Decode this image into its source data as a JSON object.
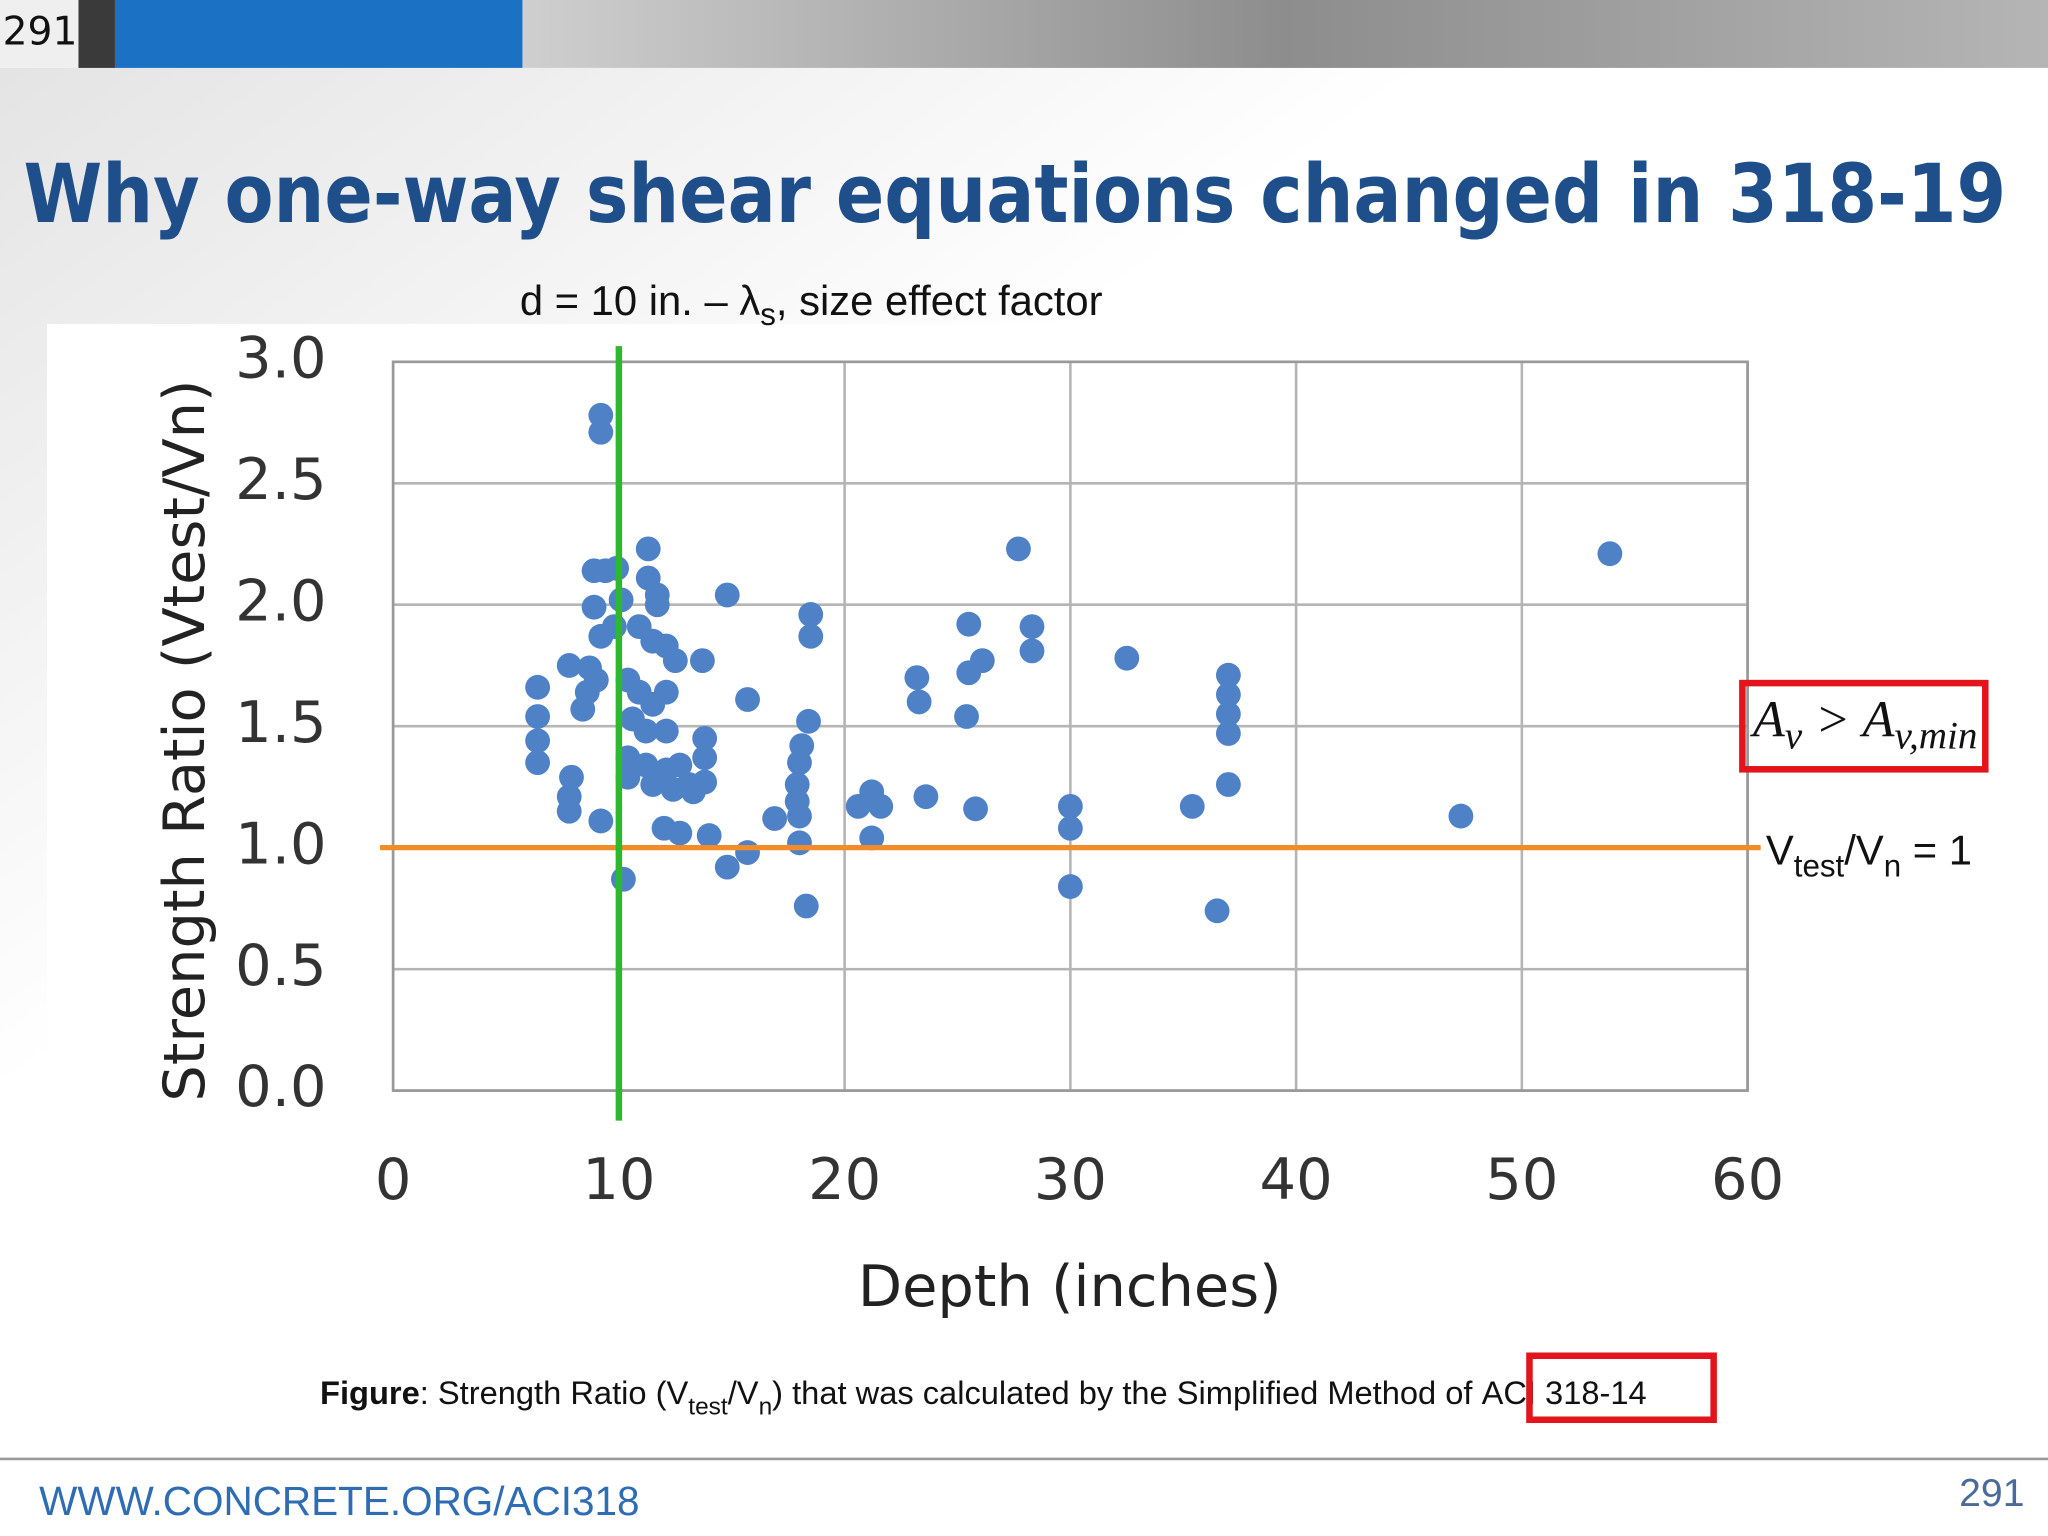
{
  "page_number": "291",
  "title": "Why one-way shear equations changed in 318-19",
  "caption": {
    "parts": [
      {
        "text": "Figure",
        "bold": true
      },
      {
        "text": ": Strength Ratio (V"
      },
      {
        "text": "test",
        "sub": true
      },
      {
        "text": "/V"
      },
      {
        "text": "n",
        "sub": true
      },
      {
        "text": ") that was calculated by the Simplified Method of "
      },
      {
        "text": "ACI 318-14"
      }
    ]
  },
  "footer": "WWW.CONCRETE.ORG/ACI318",
  "chart_data": {
    "type": "scatter",
    "x_label": "Depth (inches)",
    "y_label": "Strength Ratio (Vtest/Vn)",
    "color": "#4f81c7",
    "xlim": [
      0,
      60
    ],
    "xticks": [
      0,
      10,
      20,
      30,
      40,
      50,
      60
    ],
    "ylim": [
      0,
      3
    ],
    "yticks": [
      {
        "value": 0,
        "label": "0.0"
      },
      0.5,
      {
        "value": 1,
        "label": "1.0"
      },
      1.5,
      {
        "value": 2,
        "label": "2.0"
      },
      2.5,
      {
        "value": 3,
        "label": "3.0"
      }
    ],
    "grid": true,
    "vline": {
      "value": 10,
      "color": "#2db82d"
    },
    "hline": {
      "value": 1,
      "color": "#f28c28"
    },
    "annotations": [
      {
        "parts": [
          {
            "text": "d = 10 in. – λ"
          },
          {
            "text": "s",
            "sub": true
          },
          {
            "text": ", size effect factor"
          }
        ]
      },
      {
        "parts": [
          {
            "text": "A"
          },
          {
            "text": "v",
            "sub": true
          },
          {
            "text": " > A"
          },
          {
            "text": "v,min",
            "sub": true
          }
        ]
      },
      {
        "parts": [
          {
            "text": "V"
          },
          {
            "text": "test",
            "sub": true
          },
          {
            "text": "/V"
          },
          {
            "text": "n",
            "sub": true
          },
          {
            "text": " = 1"
          }
        ]
      }
    ],
    "x": [
      9.2,
      9.2,
      8.9,
      9.4,
      9.9,
      11.3,
      14.8,
      27.7,
      53.9,
      8.9,
      10.1,
      11.3,
      11.7,
      11.7,
      18.5,
      18.5,
      25.5,
      28.3,
      28.3,
      32.5,
      9.2,
      9.8,
      10.9,
      11.5,
      12.1,
      12.5,
      13.7,
      7.8,
      8.7,
      9.0,
      6.4,
      6.4,
      6.4,
      6.4,
      8.4,
      8.6,
      10.4,
      10.9,
      11.5,
      12.1,
      10.6,
      11.2,
      12.1,
      10.4,
      11.2,
      12.1,
      10.4,
      11.5,
      12.4,
      15.7,
      23.2,
      23.3,
      25.5,
      26.1,
      25.4,
      37.0,
      37.0,
      37.0,
      37.0,
      13.8,
      13.8,
      13.8,
      13.1,
      12.7,
      18.4,
      18.1,
      18.0,
      17.9,
      17.9,
      18.0,
      18.0,
      7.9,
      7.8,
      7.8,
      9.2,
      13.3,
      20.6,
      21.2,
      21.6,
      21.2,
      23.6,
      25.8,
      30.0,
      30.0,
      30.0,
      35.4,
      37.0,
      47.3,
      12.0,
      12.7,
      14.0,
      16.9,
      15.7,
      14.8,
      10.2,
      18.3,
      36.5
    ],
    "values": [
      2.78,
      2.71,
      2.14,
      2.14,
      2.15,
      2.23,
      2.04,
      2.23,
      2.21,
      1.99,
      2.02,
      2.11,
      2.04,
      2.0,
      1.96,
      1.87,
      1.92,
      1.91,
      1.81,
      1.78,
      1.87,
      1.91,
      1.91,
      1.85,
      1.83,
      1.77,
      1.77,
      1.75,
      1.74,
      1.69,
      1.66,
      1.54,
      1.44,
      1.35,
      1.57,
      1.64,
      1.69,
      1.64,
      1.59,
      1.64,
      1.53,
      1.48,
      1.48,
      1.37,
      1.34,
      1.32,
      1.29,
      1.26,
      1.24,
      1.61,
      1.7,
      1.6,
      1.72,
      1.77,
      1.54,
      1.71,
      1.63,
      1.55,
      1.47,
      1.45,
      1.37,
      1.27,
      1.26,
      1.34,
      1.52,
      1.42,
      1.35,
      1.26,
      1.19,
      1.13,
      1.02,
      1.29,
      1.21,
      1.15,
      1.11,
      1.23,
      1.17,
      1.23,
      1.17,
      1.04,
      1.21,
      1.16,
      1.17,
      1.08,
      0.84,
      1.17,
      1.26,
      1.13,
      1.08,
      1.06,
      1.05,
      1.12,
      0.98,
      0.92,
      0.87,
      0.76,
      0.74
    ]
  }
}
